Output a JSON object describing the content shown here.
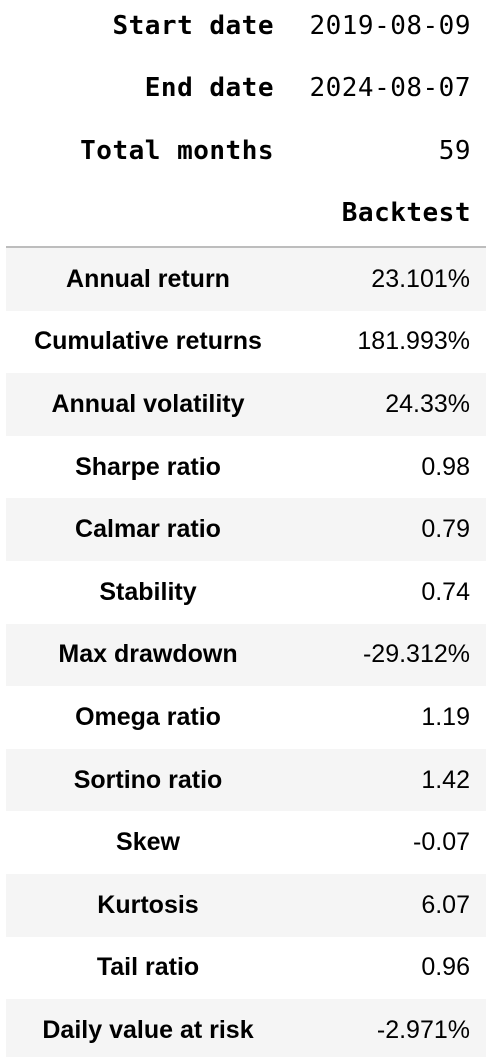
{
  "meta": [
    {
      "label": "Start date",
      "value": "2019-08-09"
    },
    {
      "label": "End date",
      "value": "2024-08-07"
    },
    {
      "label": "Total months",
      "value": "59"
    }
  ],
  "column_header": "Backtest",
  "metrics": [
    {
      "label": "Annual return",
      "value": "23.101%"
    },
    {
      "label": "Cumulative returns",
      "value": "181.993%"
    },
    {
      "label": "Annual volatility",
      "value": "24.33%"
    },
    {
      "label": "Sharpe ratio",
      "value": "0.98"
    },
    {
      "label": "Calmar ratio",
      "value": "0.79"
    },
    {
      "label": "Stability",
      "value": "0.74"
    },
    {
      "label": "Max drawdown",
      "value": "-29.312%"
    },
    {
      "label": "Omega ratio",
      "value": "1.19"
    },
    {
      "label": "Sortino ratio",
      "value": "1.42"
    },
    {
      "label": "Skew",
      "value": "-0.07"
    },
    {
      "label": "Kurtosis",
      "value": "6.07"
    },
    {
      "label": "Tail ratio",
      "value": "0.96"
    },
    {
      "label": "Daily value at risk",
      "value": "-2.971%"
    }
  ]
}
